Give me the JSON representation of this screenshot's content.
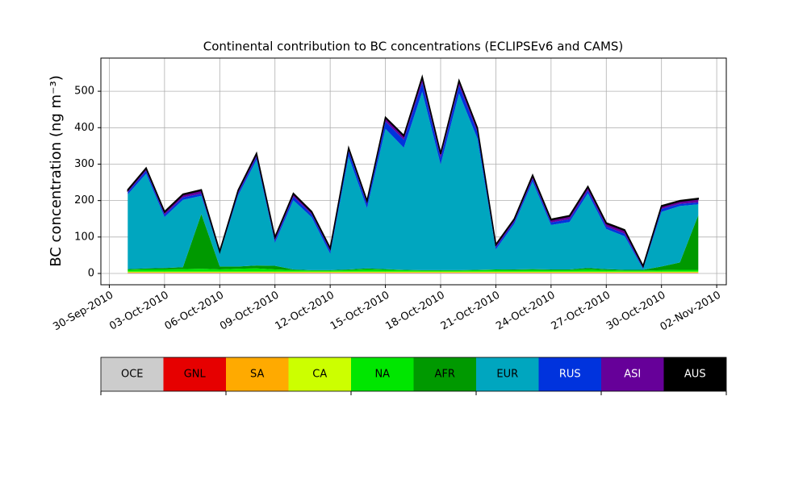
{
  "chart_data": {
    "type": "stacked_area",
    "title": "Continental contribution to BC concentrations (ECLIPSEv6 and CAMS)",
    "y_label": "BC concentration (ng m⁻³)",
    "x": [
      "2010-10-01",
      "2010-10-02",
      "2010-10-03",
      "2010-10-04",
      "2010-10-05",
      "2010-10-06",
      "2010-10-07",
      "2010-10-08",
      "2010-10-09",
      "2010-10-10",
      "2010-10-11",
      "2010-10-12",
      "2010-10-13",
      "2010-10-14",
      "2010-10-15",
      "2010-10-16",
      "2010-10-17",
      "2010-10-18",
      "2010-10-19",
      "2010-10-20",
      "2010-10-21",
      "2010-10-22",
      "2010-10-23",
      "2010-10-24",
      "2010-10-25",
      "2010-10-26",
      "2010-10-27",
      "2010-10-28",
      "2010-10-29",
      "2010-10-30",
      "2010-10-31",
      "2010-11-01"
    ],
    "series": [
      {
        "name": "OCE",
        "color": "#cccccc",
        "values": [
          1,
          1,
          1,
          1,
          1,
          1,
          1,
          1,
          1,
          1,
          1,
          1,
          1,
          1,
          1,
          1,
          1,
          1,
          1,
          1,
          1,
          1,
          1,
          1,
          1,
          1,
          1,
          1,
          1,
          1,
          1,
          1
        ]
      },
      {
        "name": "GNL",
        "color": "#e60000",
        "values": [
          1,
          1,
          1,
          1,
          1,
          1,
          1,
          1,
          1,
          1,
          1,
          1,
          1,
          1,
          1,
          1,
          1,
          1,
          1,
          1,
          1,
          1,
          1,
          1,
          1,
          1,
          1,
          1,
          1,
          1,
          1,
          1
        ]
      },
      {
        "name": "SA",
        "color": "#ffaa00",
        "values": [
          1,
          1,
          1,
          1,
          1,
          1,
          1,
          1,
          1,
          1,
          1,
          1,
          1,
          1,
          1,
          1,
          1,
          1,
          1,
          1,
          1,
          1,
          1,
          1,
          1,
          1,
          1,
          1,
          1,
          1,
          1,
          1
        ]
      },
      {
        "name": "CA",
        "color": "#ccff00",
        "values": [
          2,
          2,
          2,
          2,
          2,
          2,
          2,
          2,
          2,
          2,
          2,
          2,
          2,
          2,
          2,
          2,
          2,
          2,
          2,
          2,
          2,
          2,
          2,
          2,
          2,
          2,
          2,
          2,
          2,
          2,
          2,
          2
        ]
      },
      {
        "name": "NA",
        "color": "#00e600",
        "values": [
          5,
          6,
          6,
          7,
          8,
          6,
          8,
          9,
          6,
          4,
          3,
          3,
          4,
          6,
          5,
          4,
          3,
          3,
          3,
          4,
          5,
          4,
          5,
          4,
          4,
          6,
          4,
          3,
          3,
          4,
          5,
          5
        ]
      },
      {
        "name": "AFR",
        "color": "#009900",
        "values": [
          2,
          3,
          4,
          5,
          150,
          8,
          6,
          8,
          10,
          2,
          1,
          1,
          2,
          3,
          2,
          1,
          1,
          1,
          1,
          1,
          1,
          2,
          2,
          2,
          2,
          4,
          3,
          2,
          2,
          10,
          20,
          150
        ]
      },
      {
        "name": "EUR",
        "color": "#00a6bf",
        "values": [
          205,
          260,
          140,
          185,
          50,
          35,
          195,
          290,
          63,
          190,
          145,
          45,
          310,
          165,
          385,
          335,
          490,
          290,
          485,
          360,
          55,
          125,
          240,
          122,
          130,
          205,
          110,
          92,
          2,
          150,
          155,
          30
        ]
      },
      {
        "name": "RUS",
        "color": "#0033dd",
        "values": [
          6,
          8,
          6,
          7,
          6,
          3,
          7,
          8,
          6,
          10,
          8,
          8,
          15,
          12,
          20,
          22,
          25,
          18,
          22,
          18,
          6,
          6,
          8,
          7,
          8,
          8,
          7,
          7,
          3,
          8,
          6,
          5
        ]
      },
      {
        "name": "ASI",
        "color": "#660099",
        "values": [
          5,
          6,
          7,
          7,
          9,
          2,
          6,
          8,
          8,
          7,
          6,
          6,
          7,
          7,
          10,
          10,
          14,
          11,
          12,
          10,
          6,
          6,
          8,
          7,
          8,
          9,
          8,
          9,
          4,
          7,
          7,
          9
        ]
      },
      {
        "name": "AUS",
        "color": "#000000",
        "values": [
          2,
          2,
          2,
          2,
          2,
          2,
          2,
          2,
          2,
          2,
          2,
          2,
          2,
          2,
          2,
          2,
          2,
          2,
          2,
          2,
          2,
          2,
          2,
          2,
          2,
          2,
          2,
          2,
          2,
          2,
          2,
          2
        ]
      }
    ],
    "xlim": [
      "2010-09-29T13:00",
      "2010-11-02T12:30"
    ],
    "xticks": [
      {
        "value": "2010-09-30",
        "label": "30-Sep-2010"
      },
      {
        "value": "2010-10-03",
        "label": "03-Oct-2010"
      },
      {
        "value": "2010-10-06",
        "label": "06-Oct-2010"
      },
      {
        "value": "2010-10-09",
        "label": "09-Oct-2010"
      },
      {
        "value": "2010-10-12",
        "label": "12-Oct-2010"
      },
      {
        "value": "2010-10-15",
        "label": "15-Oct-2010"
      },
      {
        "value": "2010-10-18",
        "label": "18-Oct-2010"
      },
      {
        "value": "2010-10-21",
        "label": "21-Oct-2010"
      },
      {
        "value": "2010-10-24",
        "label": "24-Oct-2010"
      },
      {
        "value": "2010-10-27",
        "label": "27-Oct-2010"
      },
      {
        "value": "2010-10-30",
        "label": "30-Oct-2010"
      },
      {
        "value": "2010-11-02",
        "label": "02-Nov-2010"
      }
    ],
    "ylim": [
      -31,
      591
    ],
    "yticks": [
      0,
      100,
      200,
      300,
      400,
      500
    ],
    "grid": true
  }
}
